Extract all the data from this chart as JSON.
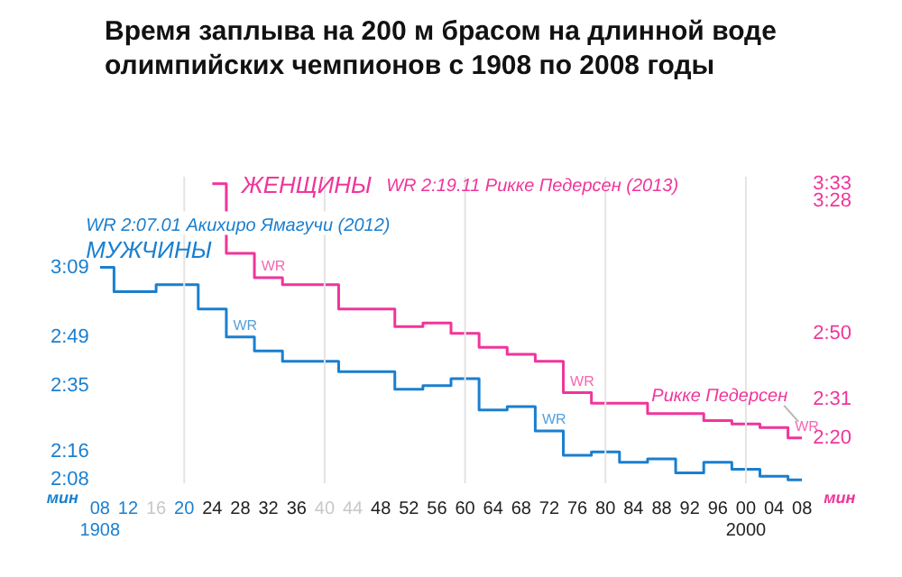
{
  "chart_data": {
    "type": "step",
    "title": "Время заплыва на 200 м брасом на длинной воде олимпийских чемпионов с 1908 по 2008 годы",
    "x": [
      1908,
      1912,
      1916,
      1920,
      1924,
      1928,
      1932,
      1936,
      1940,
      1944,
      1948,
      1952,
      1956,
      1960,
      1964,
      1968,
      1972,
      1976,
      1980,
      1984,
      1988,
      1992,
      1996,
      2000,
      2004,
      2008
    ],
    "series": [
      {
        "name": "МУЖЧИНЫ",
        "color": "#1a7fcf",
        "values": [
          189,
          182,
          null,
          184,
          177,
          169,
          165,
          162,
          null,
          null,
          159,
          154,
          155,
          157,
          148,
          149,
          142,
          135,
          136,
          133,
          134,
          130,
          133,
          131,
          129,
          128
        ]
      },
      {
        "name": "ЖЕНЩИНЫ",
        "color": "#f0359a",
        "axis": "y2",
        "values": [
          null,
          null,
          null,
          null,
          213,
          193,
          186,
          184,
          null,
          null,
          177,
          172,
          173,
          170,
          166,
          164,
          162,
          153,
          150,
          150,
          147,
          147,
          145,
          144,
          143,
          140
        ]
      }
    ],
    "xlim": [
      1908,
      2008
    ],
    "xticks": [
      {
        "value": 1908,
        "label": "08\n1908"
      },
      {
        "value": 1912,
        "label": "12"
      },
      {
        "value": 1916,
        "label": "16"
      },
      {
        "value": 1920,
        "label": "20"
      },
      {
        "value": 1924,
        "label": "24"
      },
      {
        "value": 1928,
        "label": "28"
      },
      {
        "value": 1932,
        "label": "32"
      },
      {
        "value": 1936,
        "label": "36"
      },
      {
        "value": 1940,
        "label": "40"
      },
      {
        "value": 1944,
        "label": "44"
      },
      {
        "value": 1948,
        "label": "48"
      },
      {
        "value": 1952,
        "label": "52"
      },
      {
        "value": 1956,
        "label": "56"
      },
      {
        "value": 1960,
        "label": "60"
      },
      {
        "value": 1964,
        "label": "64"
      },
      {
        "value": 1968,
        "label": "68"
      },
      {
        "value": 1972,
        "label": "72"
      },
      {
        "value": 1976,
        "label": "76"
      },
      {
        "value": 1980,
        "label": "80"
      },
      {
        "value": 1984,
        "label": "84"
      },
      {
        "value": 1988,
        "label": "88"
      },
      {
        "value": 1992,
        "label": "92"
      },
      {
        "value": 1996,
        "label": "96"
      },
      {
        "value": 2000,
        "label": "00\n2000"
      },
      {
        "value": 2004,
        "label": "04"
      },
      {
        "value": 2008,
        "label": "08"
      }
    ],
    "ylim": [
      127,
      215
    ],
    "yticks": [
      {
        "value": 189,
        "label": "3:09"
      },
      {
        "value": 169,
        "label": "2:49"
      },
      {
        "value": 155,
        "label": "2:35"
      },
      {
        "value": 136,
        "label": "2:16"
      },
      {
        "value": 128,
        "label": "2:08"
      }
    ],
    "ylabel": "мин",
    "y2lim": [
      127,
      215
    ],
    "y2ticks": [
      {
        "value": 213,
        "label": "3:33"
      },
      {
        "value": 208,
        "label": "3:28"
      },
      {
        "value": 170,
        "label": "2:50"
      },
      {
        "value": 151,
        "label": "2:31"
      },
      {
        "value": 140,
        "label": "2:20"
      }
    ],
    "y2label": "мин",
    "ref_lines": [
      {
        "axis": "x",
        "value": 1920,
        "color": "#e4e4e4"
      },
      {
        "axis": "x",
        "value": 1940,
        "color": "#e4e4e4"
      },
      {
        "axis": "x",
        "value": 1960,
        "color": "#e4e4e4"
      },
      {
        "axis": "x",
        "value": 1980,
        "color": "#e4e4e4"
      },
      {
        "axis": "x",
        "value": 2000,
        "color": "#e4e4e4"
      }
    ],
    "annotations": [
      "WR 2:07.01 Акихиро Ямагучи (2012)",
      "WR 2:19.11 Рикке Педерсен (2013)",
      {
        "text": "WR",
        "x": 1928,
        "y": 169
      },
      {
        "text": "WR",
        "x": 1972,
        "y": 142
      },
      {
        "text": "WR",
        "x": 1932,
        "y": 186
      },
      {
        "text": "WR",
        "x": 1976,
        "y": 153
      },
      {
        "text": "WR",
        "x": 2008,
        "y": 140
      },
      {
        "text": "Рикке Педерсен",
        "x": 2008,
        "y": 140
      }
    ],
    "grid": false,
    "legend": false,
    "line_style": "solid",
    "marker": "none"
  }
}
